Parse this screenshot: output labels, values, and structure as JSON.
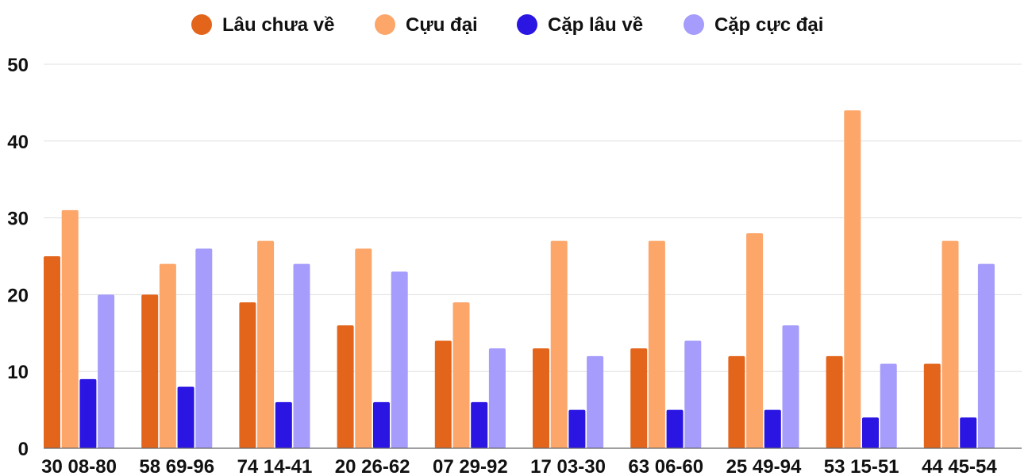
{
  "chart_data": {
    "type": "bar",
    "categories": [
      "30 08-80",
      "58 69-96",
      "74 14-41",
      "20 26-62",
      "07 29-92",
      "17 03-30",
      "63 06-60",
      "25 49-94",
      "53 15-51",
      "44 45-54"
    ],
    "series": [
      {
        "name": "Lâu chưa về",
        "color": "#e3651c",
        "values": [
          25,
          20,
          19,
          16,
          14,
          13,
          13,
          12,
          12,
          11
        ]
      },
      {
        "name": "Cựu đại",
        "color": "#fca66a",
        "values": [
          31,
          24,
          27,
          26,
          19,
          27,
          27,
          28,
          44,
          27
        ]
      },
      {
        "name": "Cặp lâu về",
        "color": "#2a15e3",
        "values": [
          9,
          8,
          6,
          6,
          6,
          5,
          5,
          5,
          4,
          4
        ]
      },
      {
        "name": "Cặp cực đại",
        "color": "#a59cfb",
        "values": [
          20,
          26,
          24,
          23,
          13,
          12,
          14,
          16,
          11,
          24
        ]
      }
    ],
    "y_ticks": [
      0,
      10,
      20,
      30,
      40,
      50
    ],
    "ylim": [
      0,
      50
    ],
    "grid": true,
    "legend_position": "top-center",
    "title": "",
    "xlabel": "",
    "ylabel": ""
  }
}
